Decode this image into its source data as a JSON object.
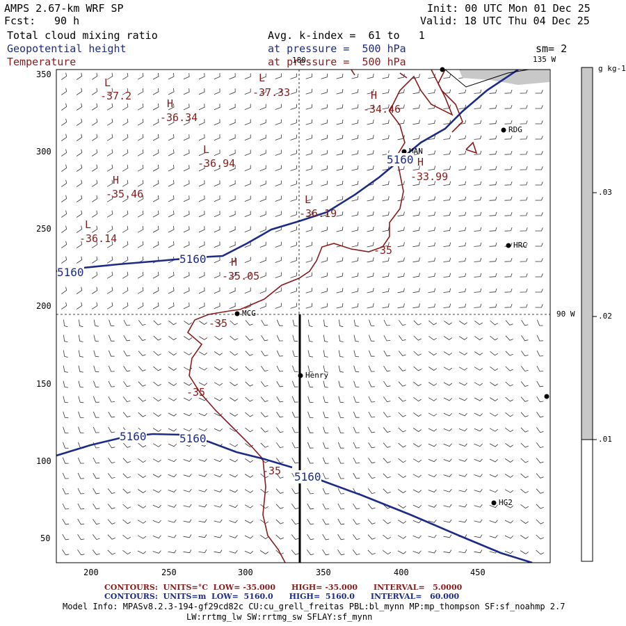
{
  "header": {
    "model": "AMPS 2.67-km WRF SP",
    "init": "Init: 00 UTC Mon 01 Dec 25",
    "fcst_label": "Fcst:",
    "fcst_value": "90 h",
    "valid": "Valid: 18 UTC Thu 04 Dec 25",
    "field1": "Total cloud mixing ratio",
    "field2": "Geopotential height",
    "field3": "Temperature",
    "avg": "Avg. k-index =  61 to   1",
    "pressure1": "at pressure =  500 hPa",
    "pressure2": "at pressure =  500 hPa",
    "sm": "sm= 2"
  },
  "map": {
    "label_180": "180",
    "label_135w": "135 W",
    "label_90w": "90 W",
    "x_ticks": [
      "200",
      "250",
      "300",
      "350",
      "400",
      "450"
    ],
    "y_ticks": [
      "350",
      "300",
      "250",
      "200",
      "150",
      "100",
      "50"
    ],
    "stations": [
      {
        "name": "RDG"
      },
      {
        "name": "MAN"
      },
      {
        "name": "HRC"
      },
      {
        "name": "MCG"
      },
      {
        "name": "Henry"
      },
      {
        "name": "HG2"
      }
    ],
    "temp_labels": [
      "L",
      "-37.2",
      "H",
      "-36.34",
      "L",
      "-37.33",
      "H",
      "-34.46",
      "L",
      "-36.94",
      "H",
      "-35.46",
      "L",
      "-36.14",
      "L",
      "-36.19",
      "H",
      "-33.99",
      "H",
      "-35.05",
      "-35",
      "-35",
      "-35",
      "-35"
    ],
    "height_labels": [
      "5160",
      "5160",
      "5160",
      "5160",
      "5160",
      "5160"
    ]
  },
  "colorbar": {
    "unit": "g kg-1",
    "labels": [
      ".03",
      ".02",
      ".01"
    ]
  },
  "footer": {
    "temp_contours": "CONTOURS:  UNITS=°C  LOW= -35.000      HIGH= -35.000      INTERVAL=   5.0000",
    "height_contours": "CONTOURS:  UNITS=m  LOW=  5160.0      HIGH=  5160.0      INTERVAL=   60.000",
    "model_info1": "Model Info: MPASv8.2.3-194-gf29cd82c CU:cu_grell_freitas PBL:bl_mynn MP:mp_thompson SF:sf_noahmp 2.7",
    "model_info2": "LW:rrtmg_lw SW:rrtmg_sw SFLAY:sf_mynn"
  },
  "colors": {
    "height": "#1c2a88",
    "temperature": "#8b1a1a",
    "cloud": "#c8c8c8"
  }
}
